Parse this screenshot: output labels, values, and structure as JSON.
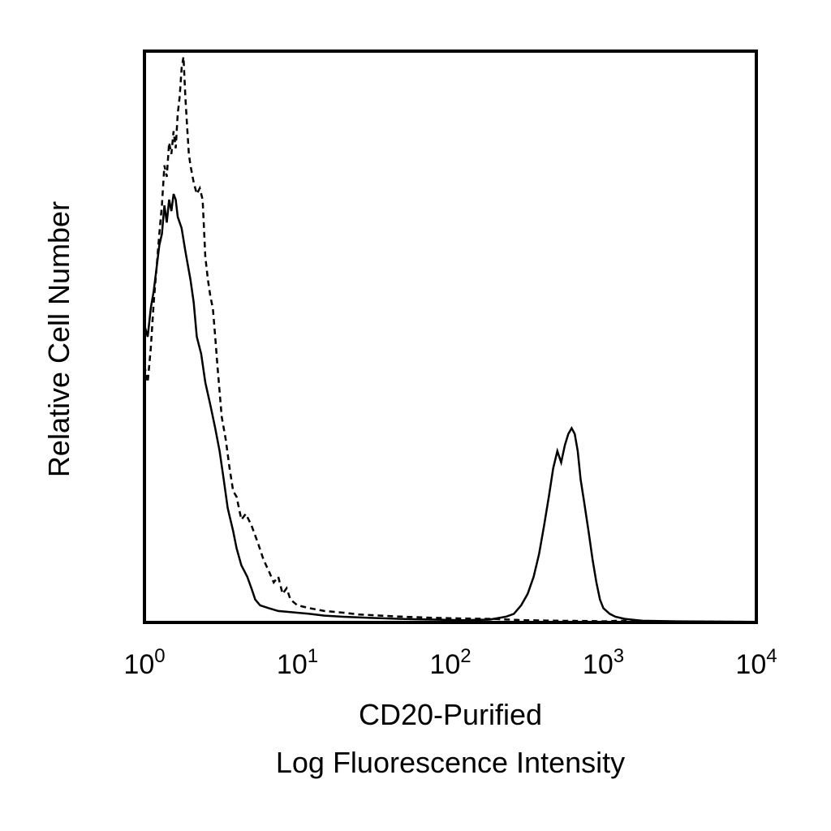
{
  "chart_data": {
    "type": "line",
    "title": "",
    "xlabel": "CD20-Purified",
    "xlabel_line2": "Log Fluorescence Intensity",
    "ylabel": "Relative Cell Number",
    "x_scale": "log",
    "xlim": [
      1,
      10000
    ],
    "ylim": [
      0,
      100
    ],
    "x_ticks": [
      {
        "value": 1,
        "base": "10",
        "exp": "0"
      },
      {
        "value": 10,
        "base": "10",
        "exp": "1"
      },
      {
        "value": 100,
        "base": "10",
        "exp": "2"
      },
      {
        "value": 1000,
        "base": "10",
        "exp": "3"
      },
      {
        "value": 10000,
        "base": "10",
        "exp": "4"
      }
    ],
    "grid": false,
    "legend": "none",
    "series": [
      {
        "style": "solid",
        "color": "#000000",
        "points": [
          [
            1.0,
            52
          ],
          [
            1.05,
            50
          ],
          [
            1.1,
            55
          ],
          [
            1.15,
            58
          ],
          [
            1.2,
            62
          ],
          [
            1.25,
            66
          ],
          [
            1.3,
            68
          ],
          [
            1.35,
            73
          ],
          [
            1.4,
            70
          ],
          [
            1.45,
            74
          ],
          [
            1.5,
            72
          ],
          [
            1.55,
            75
          ],
          [
            1.6,
            74
          ],
          [
            1.65,
            71
          ],
          [
            1.75,
            69
          ],
          [
            1.85,
            65
          ],
          [
            2.0,
            60
          ],
          [
            2.1,
            56
          ],
          [
            2.2,
            50
          ],
          [
            2.35,
            47
          ],
          [
            2.5,
            42
          ],
          [
            2.7,
            38
          ],
          [
            2.9,
            34
          ],
          [
            3.1,
            30
          ],
          [
            3.3,
            25
          ],
          [
            3.5,
            20
          ],
          [
            3.8,
            16
          ],
          [
            4.0,
            13
          ],
          [
            4.3,
            10
          ],
          [
            4.7,
            8
          ],
          [
            5.0,
            6
          ],
          [
            5.3,
            4
          ],
          [
            5.7,
            3
          ],
          [
            6.5,
            2.5
          ],
          [
            7.5,
            2
          ],
          [
            9.0,
            1.8
          ],
          [
            12,
            1.5
          ],
          [
            15,
            1.2
          ],
          [
            20,
            1.0
          ],
          [
            30,
            0.8
          ],
          [
            50,
            0.6
          ],
          [
            80,
            0.5
          ],
          [
            120,
            0.4
          ],
          [
            180,
            0.5
          ],
          [
            230,
            1.0
          ],
          [
            260,
            1.5
          ],
          [
            290,
            3
          ],
          [
            320,
            5
          ],
          [
            350,
            8
          ],
          [
            380,
            12
          ],
          [
            410,
            17
          ],
          [
            440,
            22
          ],
          [
            470,
            27
          ],
          [
            500,
            30
          ],
          [
            530,
            28
          ],
          [
            560,
            31
          ],
          [
            590,
            33
          ],
          [
            620,
            34
          ],
          [
            650,
            33
          ],
          [
            680,
            30
          ],
          [
            710,
            25
          ],
          [
            750,
            21
          ],
          [
            800,
            16
          ],
          [
            850,
            11
          ],
          [
            900,
            7
          ],
          [
            950,
            4
          ],
          [
            1000,
            2.5
          ],
          [
            1100,
            1.5
          ],
          [
            1200,
            1
          ],
          [
            1400,
            0.6
          ],
          [
            1800,
            0.3
          ],
          [
            3000,
            0.2
          ],
          [
            10000,
            0.1
          ]
        ]
      },
      {
        "style": "dashed",
        "color": "#000000",
        "points": [
          [
            1.0,
            45
          ],
          [
            1.05,
            42
          ],
          [
            1.1,
            48
          ],
          [
            1.15,
            56
          ],
          [
            1.2,
            62
          ],
          [
            1.25,
            68
          ],
          [
            1.3,
            73
          ],
          [
            1.35,
            80
          ],
          [
            1.4,
            78
          ],
          [
            1.45,
            84
          ],
          [
            1.5,
            82
          ],
          [
            1.55,
            86
          ],
          [
            1.6,
            83
          ],
          [
            1.65,
            89
          ],
          [
            1.7,
            92
          ],
          [
            1.75,
            97
          ],
          [
            1.8,
            99
          ],
          [
            1.85,
            92
          ],
          [
            1.9,
            87
          ],
          [
            1.95,
            82
          ],
          [
            2.0,
            80
          ],
          [
            2.1,
            77
          ],
          [
            2.2,
            75
          ],
          [
            2.3,
            76
          ],
          [
            2.4,
            74
          ],
          [
            2.5,
            64
          ],
          [
            2.6,
            60
          ],
          [
            2.7,
            57
          ],
          [
            2.8,
            55
          ],
          [
            2.9,
            50
          ],
          [
            3.0,
            45
          ],
          [
            3.2,
            36
          ],
          [
            3.4,
            32
          ],
          [
            3.6,
            27
          ],
          [
            3.8,
            23
          ],
          [
            4.0,
            22
          ],
          [
            4.3,
            18
          ],
          [
            4.6,
            19
          ],
          [
            5.0,
            17
          ],
          [
            5.5,
            14
          ],
          [
            6.0,
            11
          ],
          [
            6.5,
            9
          ],
          [
            7.0,
            7
          ],
          [
            7.5,
            8
          ],
          [
            8.0,
            5
          ],
          [
            8.5,
            6
          ],
          [
            9.0,
            4
          ],
          [
            10,
            3
          ],
          [
            12,
            2.5
          ],
          [
            15,
            2
          ],
          [
            20,
            1.7
          ],
          [
            25,
            1.4
          ],
          [
            35,
            1.2
          ],
          [
            50,
            1.0
          ],
          [
            80,
            0.8
          ],
          [
            120,
            0.7
          ],
          [
            200,
            0.6
          ],
          [
            300,
            0.4
          ],
          [
            500,
            0.3
          ],
          [
            800,
            0.25
          ],
          [
            1000,
            0.2
          ],
          [
            1300,
            0.3
          ],
          [
            2000,
            0.2
          ],
          [
            10000,
            0.1
          ]
        ]
      }
    ]
  }
}
